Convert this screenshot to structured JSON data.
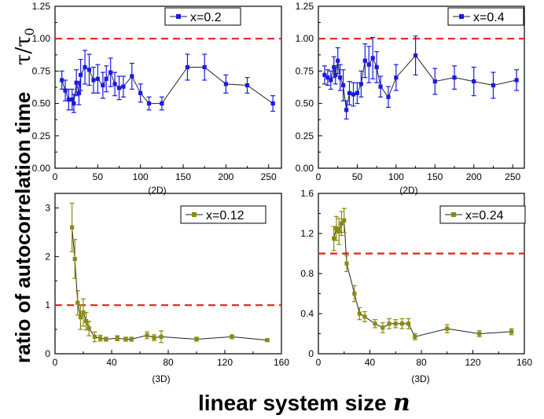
{
  "figure": {
    "ylabel": "ratio of autocorrelation time",
    "ylabel_symbol": "τ/τ",
    "ylabel_symbol_sub": "0",
    "xlabel": "linear system size",
    "xlabel_symbol": "n"
  },
  "colors": {
    "series_2d": "#1a1adf",
    "series_3d": "#8a8a12",
    "reference": "#e8201b",
    "axis": "#000000"
  },
  "chart_data": [
    {
      "type": "line",
      "title": "",
      "legend": "x=0.2",
      "sublabel": "(2D)",
      "xlim": [
        0,
        265
      ],
      "ylim": [
        0,
        1.25
      ],
      "xticks": [
        0,
        50,
        100,
        150,
        200,
        250
      ],
      "yticks": [
        0,
        0.25,
        0.5,
        0.75,
        1.0,
        1.25
      ],
      "ytick_labels": [
        "0.00",
        "0.25",
        "0.50",
        "0.75",
        "1.00",
        "1.25"
      ],
      "reference_y": 1.0,
      "x": [
        8,
        12,
        16,
        20,
        22,
        25,
        28,
        30,
        35,
        40,
        45,
        50,
        56,
        60,
        65,
        70,
        75,
        80,
        90,
        100,
        110,
        125,
        155,
        175,
        200,
        225,
        255
      ],
      "y": [
        0.68,
        0.6,
        0.53,
        0.53,
        0.5,
        0.66,
        0.58,
        0.72,
        0.78,
        0.76,
        0.68,
        0.69,
        0.64,
        0.69,
        0.74,
        0.65,
        0.62,
        0.63,
        0.71,
        0.58,
        0.5,
        0.5,
        0.78,
        0.78,
        0.65,
        0.64,
        0.5
      ],
      "err": [
        0.07,
        0.08,
        0.08,
        0.08,
        0.07,
        0.1,
        0.09,
        0.12,
        0.13,
        0.12,
        0.1,
        0.11,
        0.1,
        0.1,
        0.11,
        0.09,
        0.09,
        0.08,
        0.1,
        0.07,
        0.05,
        0.05,
        0.1,
        0.1,
        0.07,
        0.06,
        0.06
      ]
    },
    {
      "type": "line",
      "title": "",
      "legend": "x=0.4",
      "sublabel": "(2D)",
      "xlim": [
        0,
        265
      ],
      "ylim": [
        0,
        1.25
      ],
      "xticks": [
        0,
        50,
        100,
        150,
        200,
        250
      ],
      "yticks": [
        0,
        0.25,
        0.5,
        0.75,
        1.0,
        1.25
      ],
      "ytick_labels": [
        "0.00",
        "0.25",
        "0.50",
        "0.75",
        "1.00",
        "1.25"
      ],
      "reference_y": 1.0,
      "x": [
        8,
        12,
        16,
        20,
        22,
        25,
        28,
        32,
        36,
        40,
        45,
        50,
        55,
        60,
        65,
        70,
        75,
        80,
        90,
        100,
        125,
        150,
        175,
        200,
        225,
        255
      ],
      "y": [
        0.72,
        0.7,
        0.68,
        0.78,
        0.72,
        0.83,
        0.7,
        0.64,
        0.45,
        0.58,
        0.57,
        0.58,
        0.65,
        0.83,
        0.8,
        0.85,
        0.78,
        0.63,
        0.55,
        0.7,
        0.87,
        0.67,
        0.7,
        0.67,
        0.64,
        0.68
      ],
      "err": [
        0.07,
        0.06,
        0.07,
        0.08,
        0.07,
        0.1,
        0.1,
        0.12,
        0.07,
        0.09,
        0.09,
        0.08,
        0.1,
        0.13,
        0.14,
        0.16,
        0.12,
        0.08,
        0.08,
        0.1,
        0.15,
        0.1,
        0.09,
        0.11,
        0.1,
        0.08
      ]
    },
    {
      "type": "line",
      "title": "",
      "legend": "x=0.12",
      "sublabel": "(3D)",
      "xlim": [
        0,
        160
      ],
      "ylim": [
        0,
        3.3
      ],
      "xticks": [
        0,
        40,
        80,
        120,
        160
      ],
      "yticks": [
        0,
        1,
        2,
        3
      ],
      "ytick_labels": [
        "0",
        "1",
        "2",
        "3"
      ],
      "reference_y": 1.0,
      "x": [
        12,
        14,
        16,
        18,
        20,
        22,
        24,
        28,
        32,
        36,
        44,
        50,
        54,
        65,
        70,
        75,
        100,
        125,
        150
      ],
      "y": [
        2.6,
        1.95,
        1.05,
        0.75,
        0.85,
        0.67,
        0.52,
        0.35,
        0.32,
        0.3,
        0.32,
        0.3,
        0.3,
        0.38,
        0.33,
        0.35,
        0.3,
        0.35,
        0.28
      ],
      "err": [
        0.5,
        0.4,
        0.25,
        0.25,
        0.28,
        0.18,
        0.15,
        0.1,
        0.06,
        0.04,
        0.05,
        0.04,
        0.04,
        0.07,
        0.06,
        0.12,
        0.04,
        0.04,
        0.03
      ]
    },
    {
      "type": "line",
      "title": "",
      "legend": "x=0.24",
      "sublabel": "(3D)",
      "xlim": [
        0,
        160
      ],
      "ylim": [
        0,
        1.6
      ],
      "xticks": [
        0,
        40,
        80,
        120,
        160
      ],
      "yticks": [
        0,
        0.4,
        0.8,
        1.2,
        1.6
      ],
      "ytick_labels": [
        "0",
        "0.4",
        "0.8",
        "1.2",
        "1.6"
      ],
      "reference_y": 1.0,
      "x": [
        12,
        14,
        16,
        18,
        20,
        22,
        28,
        32,
        36,
        44,
        50,
        55,
        60,
        65,
        70,
        75,
        100,
        125,
        150
      ],
      "y": [
        1.15,
        1.25,
        1.22,
        1.3,
        1.33,
        0.9,
        0.6,
        0.4,
        0.37,
        0.3,
        0.26,
        0.3,
        0.3,
        0.3,
        0.3,
        0.17,
        0.25,
        0.2,
        0.22
      ],
      "err": [
        0.12,
        0.12,
        0.13,
        0.12,
        0.12,
        0.08,
        0.08,
        0.06,
        0.05,
        0.04,
        0.05,
        0.05,
        0.04,
        0.05,
        0.05,
        0.03,
        0.04,
        0.03,
        0.03
      ]
    }
  ]
}
